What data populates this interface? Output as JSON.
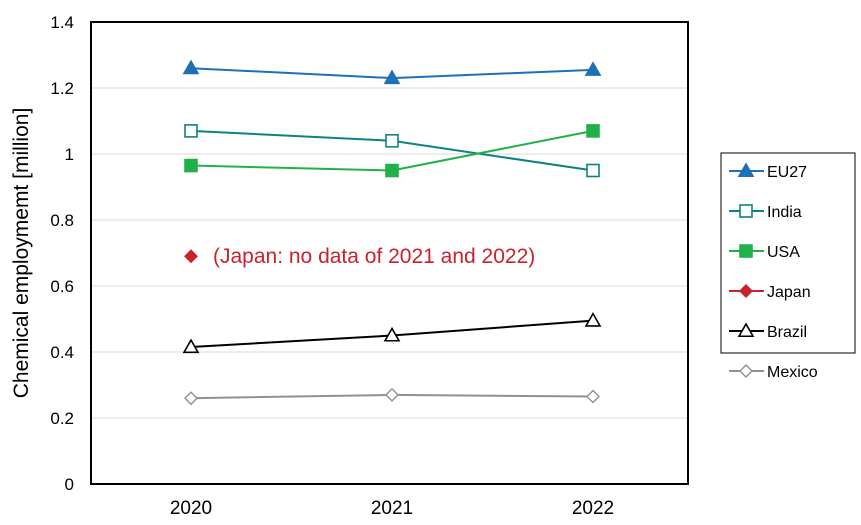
{
  "chart_data": {
    "type": "line",
    "ylabel": "Chemical employmemt  [million]",
    "xlabel": "",
    "ylim": [
      0,
      1.4
    ],
    "yticks": [
      0,
      0.2,
      0.4,
      0.6,
      0.8,
      1,
      1.2,
      1.4
    ],
    "ytick_labels": [
      "0",
      "0.2",
      "0.4",
      "0.6",
      "0.8",
      "1",
      "1.2",
      "1.4"
    ],
    "categories": [
      "2020",
      "2021",
      "2022"
    ],
    "grid": true,
    "legend_position": "right",
    "series": [
      {
        "name": "EU27",
        "values": [
          1.26,
          1.23,
          1.255
        ],
        "color": "#1f6fb4",
        "marker": "triangle",
        "filled": true
      },
      {
        "name": "India",
        "values": [
          1.07,
          1.04,
          0.95
        ],
        "color": "#0e8282",
        "marker": "square",
        "filled": false
      },
      {
        "name": "USA",
        "values": [
          0.965,
          0.95,
          1.07
        ],
        "color": "#22b04b",
        "marker": "square",
        "filled": true
      },
      {
        "name": "Japan",
        "values": [
          0.69,
          null,
          null
        ],
        "color": "#c9222c",
        "marker": "diamond",
        "filled": true
      },
      {
        "name": "Brazil",
        "values": [
          0.415,
          0.45,
          0.495
        ],
        "color": "#000000",
        "marker": "triangle",
        "filled": false
      },
      {
        "name": "Mexico",
        "values": [
          0.26,
          0.27,
          0.265
        ],
        "color": "#909090",
        "marker": "diamond",
        "filled": false
      }
    ],
    "annotation": {
      "text": "(Japan: no data of 2021 and 2022)",
      "color": "#c9222c"
    }
  }
}
